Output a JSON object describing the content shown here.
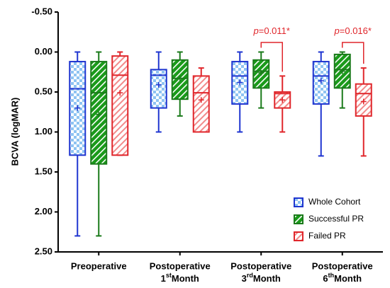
{
  "chart_data": {
    "type": "box",
    "y_label": "BCVA (logMAR)",
    "inverted_y": true,
    "ylim": [
      -0.5,
      2.5
    ],
    "yticks": [
      {
        "value": -0.5,
        "label": "-0.50"
      },
      {
        "value": 0,
        "label": "0.00"
      },
      {
        "value": 0.5,
        "label": "0.50"
      },
      {
        "value": 1,
        "label": "1.00"
      },
      {
        "value": 1.5,
        "label": "1.50"
      },
      {
        "value": 2,
        "label": "2.00"
      },
      {
        "value": 2.5,
        "label": "2.50"
      }
    ],
    "categories": [
      {
        "text": "Preoperative"
      },
      {
        "text": "Postoperative",
        "ordinal": "1",
        "suffix": "st",
        "unit": "Month"
      },
      {
        "text": "Postoperative",
        "ordinal": "3",
        "suffix": "rd",
        "unit": "Month"
      },
      {
        "text": "Postoperative",
        "ordinal": "6",
        "suffix": "th",
        "unit": "Month"
      }
    ],
    "legend": "lower right",
    "series": [
      {
        "name": "Whole Cohort",
        "color": "#1f35d0",
        "pattern": "checker",
        "boxes": [
          {
            "min": 0,
            "q1": 0.12,
            "median": 0.46,
            "q3": 1.29,
            "max": 2.3,
            "mean": 0.7
          },
          {
            "min": 0,
            "q1": 0.22,
            "median": 0.29,
            "q3": 0.7,
            "max": 1.0,
            "mean": 0.41
          },
          {
            "min": 0,
            "q1": 0.12,
            "median": 0.3,
            "q3": 0.65,
            "max": 1.0,
            "mean": 0.38
          },
          {
            "min": 0,
            "q1": 0.12,
            "median": 0.3,
            "q3": 0.65,
            "max": 1.3,
            "mean": 0.36
          }
        ]
      },
      {
        "name": "Successful PR",
        "color": "#1a7a1a",
        "pattern": "stripes-solid",
        "boxes": [
          {
            "min": 0,
            "q1": 0.12,
            "median": 0.51,
            "q3": 1.4,
            "max": 2.3,
            "mean": 0.78
          },
          {
            "min": 0,
            "q1": 0.1,
            "median": 0.33,
            "q3": 0.59,
            "max": 0.8,
            "mean": 0.33
          },
          {
            "min": 0,
            "q1": 0.1,
            "median": 0.24,
            "q3": 0.45,
            "max": 0.7,
            "mean": 0.26
          },
          {
            "min": 0,
            "q1": 0.03,
            "median": 0.22,
            "q3": 0.45,
            "max": 0.7,
            "mean": 0.24
          }
        ]
      },
      {
        "name": "Failed PR",
        "color": "#e0262b",
        "pattern": "stripes-light",
        "boxes": [
          {
            "min": 0,
            "q1": 0.05,
            "median": 0.29,
            "q3": 1.29,
            "max": 1.29,
            "mean": 0.51
          },
          {
            "min": 0.2,
            "q1": 0.3,
            "median": 0.51,
            "q3": 1.0,
            "max": 1.0,
            "mean": 0.6
          },
          {
            "min": 0.3,
            "q1": 0.5,
            "median": 0.52,
            "q3": 0.7,
            "max": 1.0,
            "mean": 0.6
          },
          {
            "min": 0.2,
            "q1": 0.4,
            "median": 0.52,
            "q3": 0.8,
            "max": 1.3,
            "mean": 0.62
          }
        ]
      }
    ],
    "annotations": [
      {
        "italic": "p",
        "rest": "=0.011*",
        "category": 2,
        "color": "#e0262b"
      },
      {
        "italic": "p",
        "rest": "=0.016*",
        "category": 3,
        "color": "#e0262b"
      }
    ]
  }
}
